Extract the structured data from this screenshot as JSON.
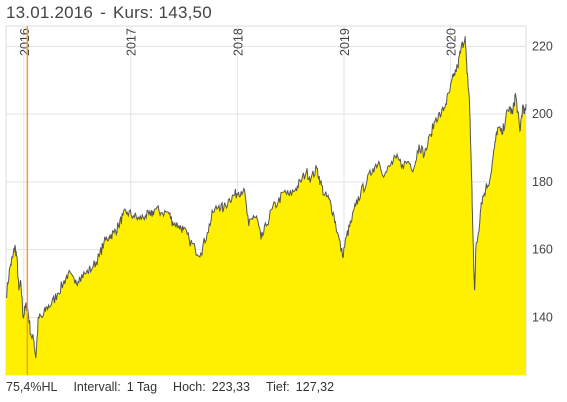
{
  "header": {
    "date": "13.01.2016",
    "separator": "-",
    "kurs_label": "Kurs:",
    "kurs_value": "143,50"
  },
  "footer": {
    "hl_label": "75,4%HL",
    "interval_label": "Intervall:",
    "interval_value": "1 Tag",
    "high_label": "Hoch:",
    "high_value": "223,33",
    "low_label": "Tief:",
    "low_value": "127,32"
  },
  "colors": {
    "fill": "#ffef00",
    "line": "#555555",
    "grid": "#e3e3e3",
    "cursor": "#f0a030"
  },
  "chart_data": {
    "type": "area",
    "x_tick_labels": [
      "2016",
      "2017",
      "2018",
      "2019",
      "2020"
    ],
    "y_ticks": [
      140,
      160,
      180,
      200,
      220
    ],
    "ylim": [
      123,
      226
    ],
    "xlim": [
      "2015-11-01",
      "2020-09-15"
    ],
    "grid": true,
    "cursor": {
      "date": "2016-01-13",
      "value": 143.5
    },
    "points": [
      [
        "2015-11-01",
        146
      ],
      [
        "2015-11-15",
        155
      ],
      [
        "2015-11-25",
        158
      ],
      [
        "2015-12-01",
        161
      ],
      [
        "2015-12-08",
        158
      ],
      [
        "2015-12-15",
        148
      ],
      [
        "2015-12-22",
        150
      ],
      [
        "2015-12-30",
        140
      ],
      [
        "2016-01-06",
        143
      ],
      [
        "2016-01-13",
        143.5
      ],
      [
        "2016-01-25",
        135
      ],
      [
        "2016-02-05",
        133
      ],
      [
        "2016-02-11",
        128
      ],
      [
        "2016-02-20",
        140
      ],
      [
        "2016-03-05",
        140
      ],
      [
        "2016-03-20",
        143
      ],
      [
        "2016-04-05",
        144
      ],
      [
        "2016-04-25",
        147
      ],
      [
        "2016-05-15",
        150
      ],
      [
        "2016-06-01",
        153
      ],
      [
        "2016-06-24",
        150
      ],
      [
        "2016-07-10",
        152
      ],
      [
        "2016-08-01",
        153
      ],
      [
        "2016-08-25",
        155
      ],
      [
        "2016-09-15",
        158
      ],
      [
        "2016-10-01",
        162
      ],
      [
        "2016-10-20",
        164
      ],
      [
        "2016-11-05",
        165
      ],
      [
        "2016-11-20",
        167
      ],
      [
        "2016-12-05",
        170
      ],
      [
        "2016-12-20",
        171
      ],
      [
        "2017-01-10",
        170
      ],
      [
        "2017-01-30",
        169
      ],
      [
        "2017-02-20",
        170
      ],
      [
        "2017-03-10",
        170
      ],
      [
        "2017-03-25",
        172
      ],
      [
        "2017-04-15",
        171
      ],
      [
        "2017-05-10",
        171
      ],
      [
        "2017-05-25",
        168
      ],
      [
        "2017-06-15",
        167
      ],
      [
        "2017-06-30",
        166
      ],
      [
        "2017-07-20",
        163
      ],
      [
        "2017-08-10",
        160
      ],
      [
        "2017-08-29",
        159
      ],
      [
        "2017-09-20",
        165
      ],
      [
        "2017-10-10",
        171
      ],
      [
        "2017-10-30",
        173
      ],
      [
        "2017-11-15",
        172
      ],
      [
        "2017-12-05",
        175
      ],
      [
        "2017-12-20",
        176
      ],
      [
        "2018-01-05",
        177
      ],
      [
        "2018-01-23",
        178
      ],
      [
        "2018-02-09",
        167
      ],
      [
        "2018-02-25",
        170
      ],
      [
        "2018-03-10",
        169
      ],
      [
        "2018-03-23",
        163
      ],
      [
        "2018-04-10",
        167
      ],
      [
        "2018-04-30",
        172
      ],
      [
        "2018-05-20",
        174
      ],
      [
        "2018-06-10",
        177
      ],
      [
        "2018-06-28",
        176
      ],
      [
        "2018-07-20",
        178
      ],
      [
        "2018-08-05",
        180
      ],
      [
        "2018-08-25",
        183
      ],
      [
        "2018-09-10",
        181
      ],
      [
        "2018-09-30",
        184
      ],
      [
        "2018-10-12",
        180
      ],
      [
        "2018-10-26",
        176
      ],
      [
        "2018-11-10",
        175
      ],
      [
        "2018-11-25",
        171
      ],
      [
        "2018-12-10",
        165
      ],
      [
        "2018-12-27",
        158
      ],
      [
        "2019-01-10",
        164
      ],
      [
        "2019-01-25",
        168
      ],
      [
        "2019-02-10",
        173
      ],
      [
        "2019-02-28",
        177
      ],
      [
        "2019-03-20",
        180
      ],
      [
        "2019-04-10",
        184
      ],
      [
        "2019-04-30",
        186
      ],
      [
        "2019-05-20",
        182
      ],
      [
        "2019-06-10",
        185
      ],
      [
        "2019-06-28",
        187
      ],
      [
        "2019-07-20",
        185
      ],
      [
        "2019-08-10",
        186
      ],
      [
        "2019-08-28",
        184
      ],
      [
        "2019-09-15",
        191
      ],
      [
        "2019-10-03",
        188
      ],
      [
        "2019-10-25",
        194
      ],
      [
        "2019-11-12",
        199
      ],
      [
        "2019-11-30",
        200
      ],
      [
        "2019-12-15",
        203
      ],
      [
        "2019-12-30",
        207
      ],
      [
        "2020-01-10",
        211
      ],
      [
        "2020-01-25",
        214
      ],
      [
        "2020-02-05",
        219
      ],
      [
        "2020-02-20",
        223
      ],
      [
        "2020-02-26",
        212
      ],
      [
        "2020-03-05",
        205
      ],
      [
        "2020-03-10",
        190
      ],
      [
        "2020-03-16",
        170
      ],
      [
        "2020-03-20",
        155
      ],
      [
        "2020-03-23",
        148
      ],
      [
        "2020-03-27",
        160
      ],
      [
        "2020-04-05",
        165
      ],
      [
        "2020-04-15",
        174
      ],
      [
        "2020-04-30",
        178
      ],
      [
        "2020-05-15",
        181
      ],
      [
        "2020-05-30",
        190
      ],
      [
        "2020-06-10",
        196
      ],
      [
        "2020-06-25",
        194
      ],
      [
        "2020-07-08",
        199
      ],
      [
        "2020-07-20",
        202
      ],
      [
        "2020-07-31",
        200
      ],
      [
        "2020-08-10",
        206
      ],
      [
        "2020-08-17",
        201
      ],
      [
        "2020-08-25",
        195
      ],
      [
        "2020-09-03",
        202
      ],
      [
        "2020-09-10",
        200
      ],
      [
        "2020-09-15",
        203
      ]
    ]
  }
}
